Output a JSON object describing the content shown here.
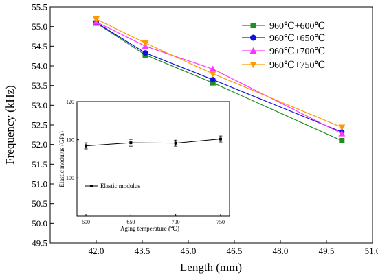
{
  "chart_data": [
    {
      "type": "line",
      "title": "",
      "xlabel": "Length (mm)",
      "ylabel": "Frequency (kHz)",
      "xlim": [
        40.5,
        51.0
      ],
      "ylim": [
        49.5,
        55.5
      ],
      "x_ticks": [
        "42.0",
        "43.5",
        "45.0",
        "46.5",
        "48.0",
        "49.5",
        "51.0"
      ],
      "y_ticks": [
        "49.5",
        "50.0",
        "50.5",
        "51.0",
        "51.5",
        "52.0",
        "52.5",
        "53.0",
        "53.5",
        "54.0",
        "54.5",
        "55.0",
        "55.5"
      ],
      "legend_position": "top-right",
      "grid": false,
      "x": [
        42.0,
        43.6,
        45.8,
        50.0
      ],
      "series": [
        {
          "name": "960℃+600℃",
          "marker": "square",
          "color": "#1f8f1f",
          "values": [
            55.09,
            54.28,
            53.57,
            52.1
          ]
        },
        {
          "name": "960℃+650℃",
          "marker": "circle",
          "color": "#1010e0",
          "values": [
            55.1,
            54.33,
            53.65,
            52.32
          ]
        },
        {
          "name": "960℃+700℃",
          "marker": "triangle-up",
          "color": "#ff33ff",
          "values": [
            55.12,
            54.5,
            53.92,
            52.28
          ]
        },
        {
          "name": "960℃+750℃",
          "marker": "triangle-down",
          "color": "#ff9900",
          "values": [
            55.19,
            54.58,
            53.8,
            52.44
          ]
        }
      ]
    },
    {
      "type": "line",
      "title": "",
      "xlabel": "Aging temperature (℃)",
      "ylabel": "Elastic modulus (GPa)",
      "xlim": [
        590,
        760
      ],
      "ylim": [
        90,
        120
      ],
      "x_ticks": [
        "600",
        "650",
        "700",
        "750"
      ],
      "y_ticks": [
        "100",
        "110",
        "120"
      ],
      "legend_position": "lower-left",
      "grid": false,
      "x": [
        600,
        650,
        700,
        750
      ],
      "series": [
        {
          "name": "Elastic modulus",
          "marker": "square",
          "color": "#000000",
          "values": [
            108.4,
            109.2,
            109.1,
            110.2
          ],
          "error": [
            0.8,
            0.9,
            0.8,
            0.8
          ]
        }
      ]
    }
  ]
}
